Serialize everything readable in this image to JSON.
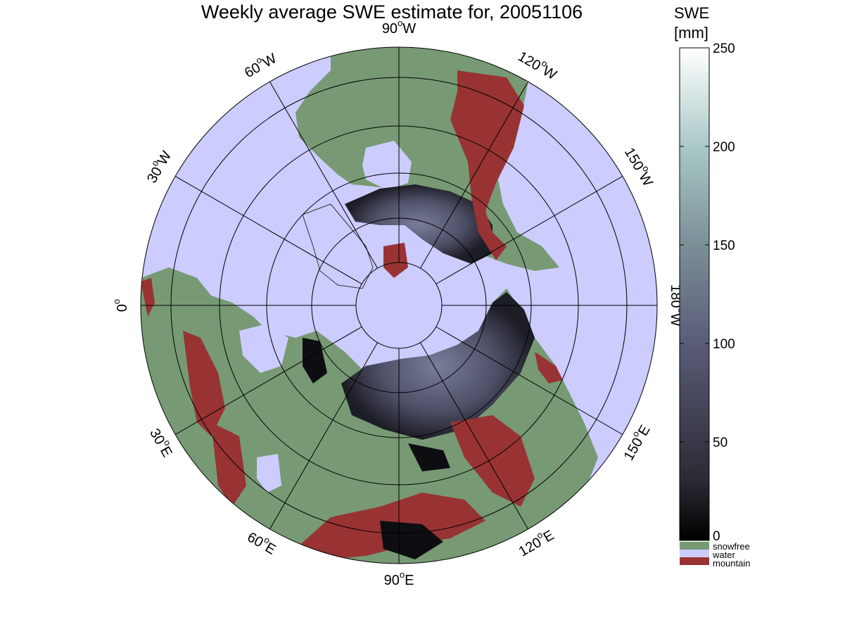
{
  "title": "Weekly average SWE estimate for, 20051106",
  "colors": {
    "snowfree": "#779a74",
    "water": "#ccccff",
    "mountain": "#993333",
    "swe_low": "#101015",
    "swe_mid": "#595b78",
    "swe_high": "#ffffff"
  },
  "map": {
    "projection": "north polar stereographic",
    "center": "north pole",
    "lon_labels": [
      {
        "lon": "90°W",
        "text": "90",
        "suffix": "W"
      },
      {
        "lon": "120°W",
        "text": "120",
        "suffix": "W"
      },
      {
        "lon": "150°W",
        "text": "150",
        "suffix": "W"
      },
      {
        "lon": "180°W",
        "text": "180",
        "suffix": "W"
      },
      {
        "lon": "150°E",
        "text": "150",
        "suffix": "E"
      },
      {
        "lon": "120°E",
        "text": "120",
        "suffix": "E"
      },
      {
        "lon": "90°E",
        "text": "90",
        "suffix": "E"
      },
      {
        "lon": "60°E",
        "text": "60",
        "suffix": "E"
      },
      {
        "lon": "30°E",
        "text": "30",
        "suffix": "E"
      },
      {
        "lon": "0°",
        "text": "0",
        "suffix": ""
      },
      {
        "lon": "30°W",
        "text": "30",
        "suffix": "W"
      },
      {
        "lon": "60°W",
        "text": "60",
        "suffix": "W"
      }
    ],
    "grid": true
  },
  "colorbar": {
    "title_line1": "SWE",
    "title_line2": "[mm]",
    "ticks": [
      "250",
      "200",
      "150",
      "100",
      "50",
      "0"
    ],
    "range": [
      0,
      250
    ],
    "categories": [
      {
        "label": "snowfree",
        "color_key": "snowfree"
      },
      {
        "label": "water",
        "color_key": "water"
      },
      {
        "label": "mountain",
        "color_key": "mountain"
      }
    ]
  }
}
